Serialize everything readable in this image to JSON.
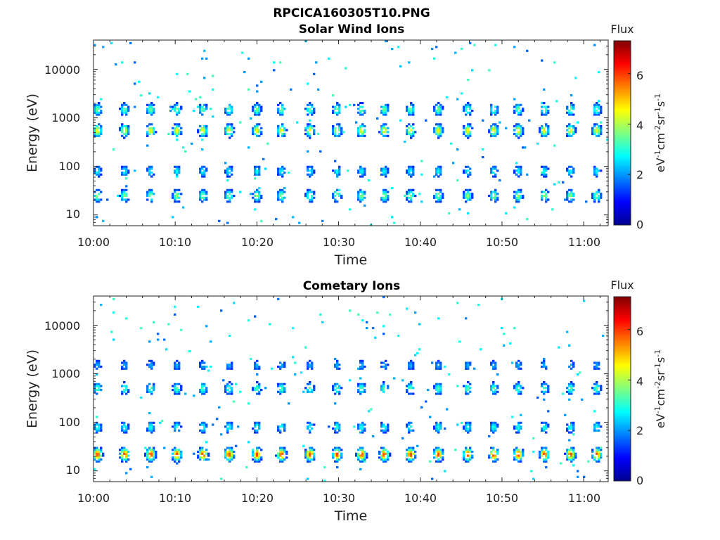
{
  "figure_title": "RPCICA160305T10.PNG",
  "chart_data": [
    {
      "type": "heatmap",
      "title": "Solar Wind Ions",
      "xlabel": "Time",
      "ylabel": "Energy (eV)",
      "x_ticks": [
        "10:00",
        "10:10",
        "10:20",
        "10:30",
        "10:40",
        "10:50",
        "11:00"
      ],
      "y_ticks": [
        "10",
        "100",
        "1000",
        "10000"
      ],
      "y_scale": "log",
      "ylim": [
        6,
        40000
      ],
      "xlim_minutes": [
        0,
        63
      ],
      "colorbar": {
        "label": "Flux",
        "unit_label": "eV-1cm-2sr-1s-1",
        "ticks": [
          "0",
          "2",
          "4",
          "6"
        ],
        "range": [
          0,
          7.3
        ],
        "colormap": "jet"
      },
      "burst_times_min": [
        0.5,
        3.8,
        7.0,
        10.2,
        13.4,
        16.6,
        20.0,
        23.0,
        26.5,
        29.8,
        32.8,
        35.6,
        38.8,
        42.2,
        45.8,
        49.0,
        52.0,
        55.2,
        58.4,
        61.6
      ],
      "components": [
        {
          "energy_eV": 550,
          "level": 4.6
        },
        {
          "energy_eV": 1500,
          "level": 3.6
        },
        {
          "energy_eV": 25,
          "level": 3.8
        },
        {
          "energy_eV": 80,
          "level": 2.8
        }
      ]
    },
    {
      "type": "heatmap",
      "title": "Cometary Ions",
      "xlabel": "Time",
      "ylabel": "Energy (eV)",
      "x_ticks": [
        "10:00",
        "10:10",
        "10:20",
        "10:30",
        "10:40",
        "10:50",
        "11:00"
      ],
      "y_ticks": [
        "10",
        "100",
        "1000",
        "10000"
      ],
      "y_scale": "log",
      "ylim": [
        6,
        40000
      ],
      "xlim_minutes": [
        0,
        63
      ],
      "colorbar": {
        "label": "Flux",
        "unit_label": "eV-1cm-2sr-1s-1",
        "ticks": [
          "0",
          "2",
          "4",
          "6"
        ],
        "range": [
          0,
          7.3
        ],
        "colormap": "jet"
      },
      "burst_times_min": [
        0.5,
        3.8,
        7.0,
        10.2,
        13.4,
        16.6,
        20.0,
        23.0,
        26.5,
        29.8,
        32.8,
        35.6,
        38.8,
        42.2,
        45.8,
        49.0,
        52.0,
        55.2,
        58.4,
        61.6
      ],
      "components": [
        {
          "energy_eV": 22,
          "level": 6.0
        },
        {
          "energy_eV": 80,
          "level": 3.0
        },
        {
          "energy_eV": 500,
          "level": 3.4
        },
        {
          "energy_eV": 1500,
          "level": 2.2
        }
      ]
    }
  ]
}
